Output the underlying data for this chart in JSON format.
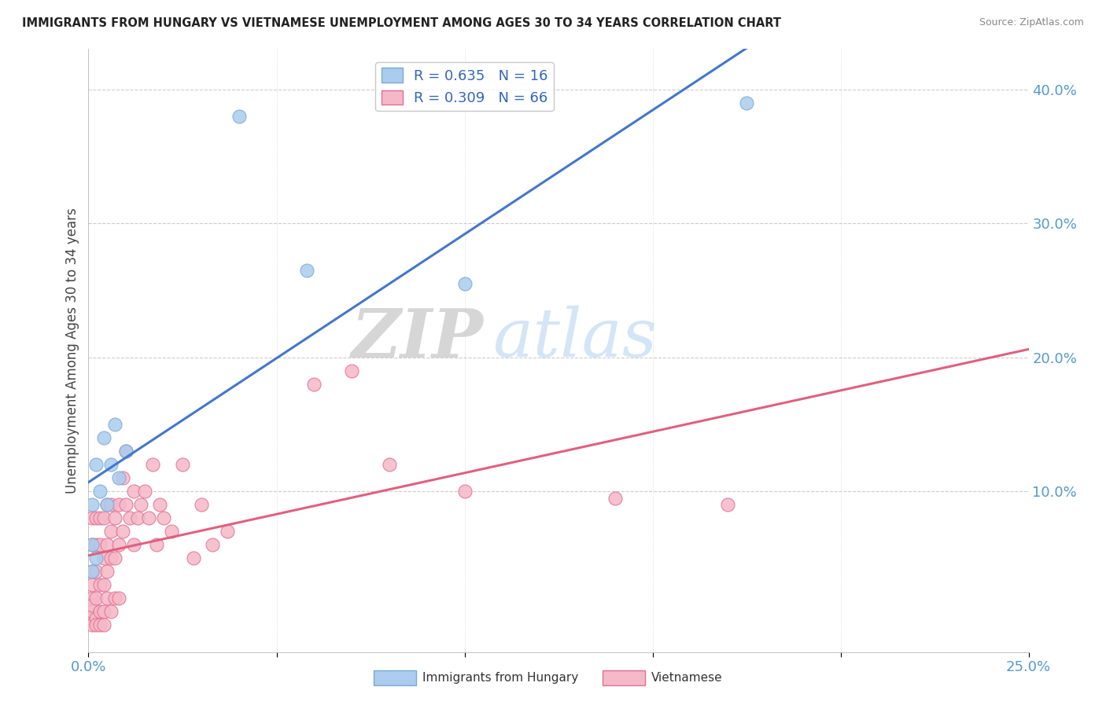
{
  "title": "IMMIGRANTS FROM HUNGARY VS VIETNAMESE UNEMPLOYMENT AMONG AGES 30 TO 34 YEARS CORRELATION CHART",
  "source": "Source: ZipAtlas.com",
  "ylabel": "Unemployment Among Ages 30 to 34 years",
  "legend_hungary": "R = 0.635   N = 16",
  "legend_vietnamese": "R = 0.309   N = 66",
  "watermark_zip": "ZIP",
  "watermark_atlas": "atlas",
  "xlim": [
    0.0,
    0.25
  ],
  "ylim": [
    -0.02,
    0.43
  ],
  "right_yticks": [
    0.0,
    0.1,
    0.2,
    0.3,
    0.4
  ],
  "right_yticklabels": [
    "",
    "10.0%",
    "20.0%",
    "30.0%",
    "40.0%"
  ],
  "hungary_color": "#aaccee",
  "hungarian_edge": "#7aaad4",
  "vietnamese_color": "#f5b8c8",
  "vietnamese_edge": "#e07090",
  "blue_line_color": "#4477cc",
  "pink_line_color": "#e06080",
  "grid_color": "#cccccc",
  "hungary_x": [
    0.001,
    0.001,
    0.001,
    0.002,
    0.002,
    0.003,
    0.004,
    0.005,
    0.006,
    0.007,
    0.008,
    0.01,
    0.04,
    0.058,
    0.1,
    0.175
  ],
  "hungary_y": [
    0.04,
    0.06,
    0.09,
    0.05,
    0.12,
    0.1,
    0.14,
    0.09,
    0.12,
    0.15,
    0.11,
    0.13,
    0.38,
    0.265,
    0.255,
    0.39
  ],
  "viet_x": [
    0.001,
    0.001,
    0.001,
    0.001,
    0.001,
    0.001,
    0.001,
    0.001,
    0.001,
    0.002,
    0.002,
    0.002,
    0.002,
    0.002,
    0.002,
    0.003,
    0.003,
    0.003,
    0.003,
    0.003,
    0.004,
    0.004,
    0.004,
    0.004,
    0.004,
    0.005,
    0.005,
    0.005,
    0.005,
    0.006,
    0.006,
    0.006,
    0.006,
    0.007,
    0.007,
    0.007,
    0.008,
    0.008,
    0.008,
    0.009,
    0.009,
    0.01,
    0.01,
    0.011,
    0.012,
    0.012,
    0.013,
    0.014,
    0.015,
    0.016,
    0.017,
    0.018,
    0.019,
    0.02,
    0.022,
    0.025,
    0.028,
    0.03,
    0.033,
    0.037,
    0.06,
    0.07,
    0.08,
    0.1,
    0.14,
    0.17
  ],
  "viet_y": [
    0.04,
    0.02,
    0.06,
    0.005,
    0.08,
    0.01,
    0.03,
    0.0,
    0.015,
    0.04,
    0.005,
    0.06,
    0.02,
    0.08,
    0.0,
    0.03,
    0.06,
    0.01,
    0.08,
    0.0,
    0.05,
    0.08,
    0.01,
    0.03,
    0.0,
    0.06,
    0.09,
    0.02,
    0.04,
    0.07,
    0.05,
    0.01,
    0.09,
    0.08,
    0.05,
    0.02,
    0.06,
    0.09,
    0.02,
    0.07,
    0.11,
    0.09,
    0.13,
    0.08,
    0.06,
    0.1,
    0.08,
    0.09,
    0.1,
    0.08,
    0.12,
    0.06,
    0.09,
    0.08,
    0.07,
    0.12,
    0.05,
    0.09,
    0.06,
    0.07,
    0.18,
    0.19,
    0.12,
    0.1,
    0.095,
    0.09
  ]
}
